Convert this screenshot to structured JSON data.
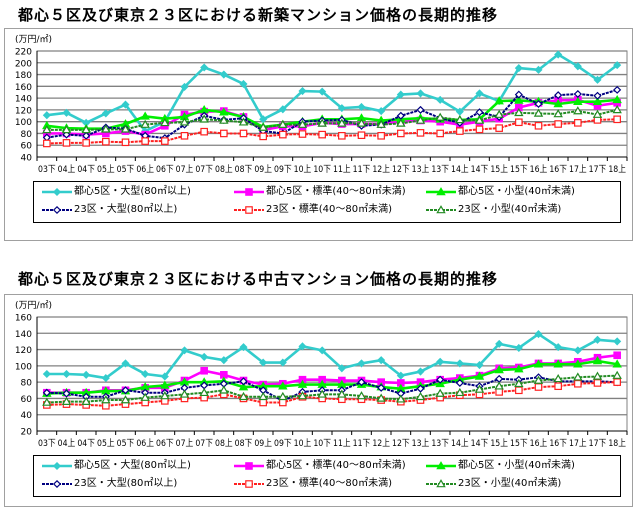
{
  "chart_data": [
    {
      "type": "line",
      "title": "都心５区及び東京２３区における新築マンション価格の長期的推移",
      "ylabel": "(万円/㎡)",
      "xlabel": "",
      "ylim": [
        40,
        220
      ],
      "yticks": [
        40,
        60,
        80,
        100,
        120,
        140,
        160,
        180,
        200,
        220
      ],
      "grid": true,
      "legend_position": "bottom",
      "categories": [
        "03下",
        "04上",
        "04下",
        "05上",
        "05下",
        "06上",
        "06下",
        "07上",
        "07下",
        "08上",
        "08下",
        "09上",
        "09下",
        "10上",
        "10下",
        "11上",
        "11下",
        "12上",
        "12下",
        "13上",
        "13下",
        "14上",
        "14下",
        "15上",
        "15下",
        "16上",
        "16下",
        "17上",
        "17下",
        "18上"
      ],
      "series": [
        {
          "name": "都心5区・大型(80㎡以上)",
          "color": "#33cccc",
          "marker": "diamond-filled",
          "dash": false,
          "values": [
            111,
            115,
            98,
            114,
            129,
            84,
            100,
            159,
            192,
            180,
            164,
            104,
            121,
            152,
            151,
            123,
            125,
            118,
            146,
            148,
            137,
            117,
            148,
            135,
            191,
            188,
            214,
            194,
            171,
            196
          ]
        },
        {
          "name": "都心5区・標準(40～80㎡未満)",
          "color": "#ff00ff",
          "marker": "square-filled",
          "dash": false,
          "values": [
            80,
            80,
            78,
            80,
            84,
            78,
            93,
            112,
            117,
            118,
            108,
            86,
            92,
            92,
            98,
            96,
            96,
            96,
            100,
            102,
            100,
            95,
            100,
            105,
            124,
            132,
            136,
            137,
            127,
            132
          ]
        },
        {
          "name": "都心5区・小型(40㎡未満)",
          "color": "#00ee00",
          "marker": "triangle-filled",
          "dash": false,
          "values": [
            93,
            89,
            88,
            88,
            96,
            109,
            105,
            108,
            120,
            116,
            108,
            91,
            95,
            100,
            104,
            104,
            106,
            102,
            104,
            106,
            104,
            103,
            104,
            135,
            136,
            134,
            130,
            134,
            134,
            137
          ]
        },
        {
          "name": "23区・大型(80㎡以上)",
          "color": "#000080",
          "marker": "diamond-open",
          "dash": true,
          "values": [
            73,
            78,
            76,
            90,
            88,
            76,
            72,
            95,
            110,
            103,
            106,
            84,
            80,
            100,
            102,
            103,
            93,
            95,
            110,
            120,
            106,
            98,
            116,
            108,
            146,
            130,
            145,
            147,
            144,
            154
          ]
        },
        {
          "name": "23区・標準(40～80㎡未満)",
          "color": "#ff2020",
          "marker": "square-open",
          "dash": true,
          "values": [
            63,
            64,
            64,
            66,
            65,
            67,
            67,
            76,
            83,
            80,
            80,
            75,
            78,
            79,
            78,
            76,
            77,
            76,
            80,
            81,
            80,
            84,
            87,
            89,
            99,
            93,
            96,
            98,
            103,
            104
          ]
        },
        {
          "name": "23区・小型(40㎡未満)",
          "color": "#228b22",
          "marker": "triangle-open",
          "dash": true,
          "values": [
            86,
            86,
            86,
            87,
            87,
            95,
            98,
            99,
            104,
            102,
            99,
            90,
            95,
            95,
            97,
            97,
            97,
            95,
            97,
            102,
            107,
            103,
            102,
            112,
            115,
            114,
            113,
            118,
            112,
            120
          ]
        }
      ]
    },
    {
      "type": "line",
      "title": "都心５区及び東京２３区における中古マンション価格の長期的推移",
      "ylabel": "(万円/㎡)",
      "xlabel": "",
      "ylim": [
        20,
        160
      ],
      "yticks": [
        20,
        40,
        60,
        80,
        100,
        120,
        140,
        160
      ],
      "grid": true,
      "legend_position": "bottom",
      "categories": [
        "03下",
        "04上",
        "04下",
        "05上",
        "05下",
        "06上",
        "06下",
        "07上",
        "07下",
        "08上",
        "08下",
        "09上",
        "09下",
        "10上",
        "10下",
        "11上",
        "11下",
        "12上",
        "12下",
        "13上",
        "13下",
        "14上",
        "14下",
        "15上",
        "15下",
        "16上",
        "16下",
        "17上",
        "17下",
        "18上"
      ],
      "series": [
        {
          "name": "都心5区・大型(80㎡以上)",
          "color": "#33cccc",
          "marker": "diamond-filled",
          "dash": false,
          "values": [
            90,
            90,
            89,
            85,
            103,
            90,
            87,
            119,
            111,
            107,
            123,
            104,
            104,
            124,
            119,
            97,
            103,
            107,
            88,
            93,
            105,
            103,
            101,
            127,
            122,
            139,
            123,
            119,
            132,
            130
          ]
        },
        {
          "name": "都心5区・標準(40～80㎡未満)",
          "color": "#ff00ff",
          "marker": "square-filled",
          "dash": false,
          "values": [
            67,
            67,
            67,
            70,
            70,
            73,
            73,
            82,
            94,
            89,
            82,
            77,
            78,
            83,
            83,
            82,
            82,
            80,
            79,
            80,
            83,
            85,
            88,
            97,
            98,
            103,
            103,
            105,
            110,
            113
          ]
        },
        {
          "name": "都心5区・小型(40㎡未満)",
          "color": "#00ee00",
          "marker": "triangle-filled",
          "dash": false,
          "values": [
            66,
            67,
            67,
            69,
            69,
            74,
            76,
            80,
            80,
            81,
            74,
            75,
            75,
            77,
            77,
            77,
            77,
            74,
            72,
            75,
            78,
            83,
            87,
            95,
            96,
            102,
            102,
            102,
            106,
            102
          ]
        },
        {
          "name": "23区・大型(80㎡以上)",
          "color": "#000080",
          "marker": "diamond-open",
          "dash": true,
          "values": [
            67,
            66,
            62,
            62,
            70,
            67,
            67,
            73,
            76,
            78,
            81,
            70,
            57,
            68,
            70,
            70,
            80,
            73,
            66,
            72,
            83,
            79,
            75,
            84,
            83,
            86,
            81,
            81,
            81,
            80
          ]
        },
        {
          "name": "23区・標準(40～80㎡未満)",
          "color": "#ff2020",
          "marker": "square-open",
          "dash": true,
          "values": [
            52,
            53,
            52,
            51,
            53,
            55,
            57,
            60,
            61,
            65,
            60,
            55,
            55,
            62,
            60,
            59,
            59,
            58,
            56,
            58,
            61,
            64,
            65,
            68,
            70,
            74,
            75,
            78,
            79,
            80
          ]
        },
        {
          "name": "23区・小型(40㎡未満)",
          "color": "#228b22",
          "marker": "triangle-open",
          "dash": true,
          "values": [
            55,
            56,
            56,
            58,
            58,
            61,
            63,
            65,
            67,
            70,
            62,
            62,
            62,
            63,
            65,
            65,
            63,
            60,
            59,
            62,
            66,
            67,
            71,
            75,
            78,
            82,
            84,
            86,
            87,
            88
          ]
        }
      ]
    }
  ]
}
